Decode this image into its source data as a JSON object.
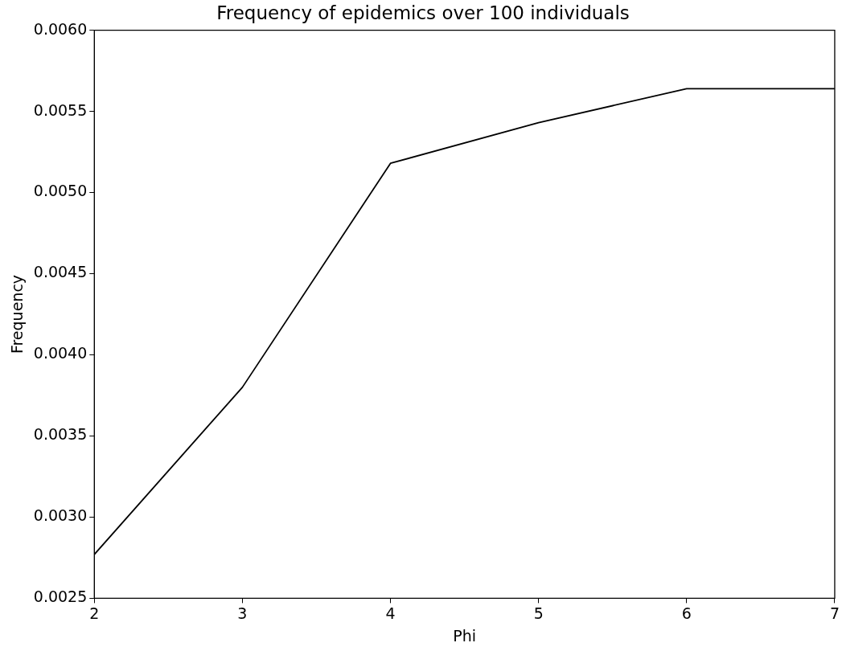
{
  "chart_data": {
    "type": "line",
    "title": "Frequency of epidemics over 100 individuals",
    "xlabel": "Phi",
    "ylabel": "Frequency",
    "x": [
      2,
      3,
      4,
      5,
      6,
      7
    ],
    "series": [
      {
        "color": "#000000",
        "values": [
          0.00277,
          0.0038,
          0.00518,
          0.00543,
          0.00564,
          0.00564
        ]
      }
    ],
    "xlim": [
      2,
      7
    ],
    "xticks": [
      2,
      3,
      4,
      5,
      6,
      7
    ],
    "ylim": [
      0.0025,
      0.006
    ],
    "yticks": [
      0.0025,
      {
        "value": 0.003,
        "label": "0.0030"
      },
      0.0035,
      {
        "value": 0.004,
        "label": "0.0040"
      },
      0.0045,
      {
        "value": 0.005,
        "label": "0.0050"
      },
      0.0055,
      {
        "value": 0.006,
        "label": "0.0060"
      }
    ],
    "grid": false,
    "legend": false,
    "marker": "none",
    "line_style": "solid"
  }
}
